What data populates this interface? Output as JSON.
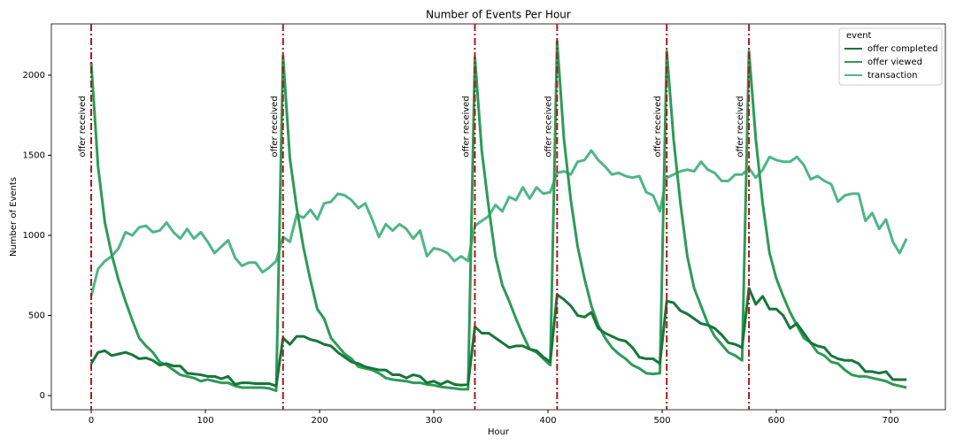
{
  "chart_data": {
    "type": "line",
    "title": "Number of Events Per Hour",
    "x_label": "Hour",
    "y_label": "Number of Events",
    "x": [
      0,
      6,
      12,
      18,
      24,
      30,
      36,
      42,
      48,
      54,
      60,
      66,
      72,
      78,
      84,
      90,
      96,
      102,
      108,
      114,
      120,
      126,
      132,
      138,
      144,
      150,
      156,
      162,
      168,
      174,
      180,
      186,
      192,
      198,
      204,
      210,
      216,
      222,
      228,
      234,
      240,
      246,
      252,
      258,
      264,
      270,
      276,
      282,
      288,
      294,
      300,
      306,
      312,
      318,
      324,
      330,
      336,
      342,
      348,
      354,
      360,
      366,
      372,
      378,
      384,
      390,
      396,
      402,
      408,
      414,
      420,
      426,
      432,
      438,
      444,
      450,
      456,
      462,
      468,
      474,
      480,
      486,
      492,
      498,
      504,
      510,
      516,
      522,
      528,
      534,
      540,
      546,
      552,
      558,
      564,
      570,
      576,
      582,
      588,
      594,
      600,
      606,
      612,
      618,
      624,
      630,
      636,
      642,
      648,
      654,
      660,
      666,
      672,
      678,
      684,
      690,
      696,
      702,
      708,
      714
    ],
    "series": [
      {
        "name": "offer completed",
        "color": "#17763a",
        "values": [
          200,
          270,
          280,
          250,
          260,
          270,
          255,
          230,
          235,
          220,
          190,
          200,
          185,
          185,
          140,
          135,
          130,
          120,
          120,
          105,
          120,
          70,
          80,
          80,
          75,
          75,
          75,
          60,
          360,
          320,
          370,
          370,
          350,
          340,
          320,
          310,
          270,
          240,
          210,
          200,
          180,
          170,
          160,
          160,
          130,
          130,
          110,
          130,
          120,
          80,
          90,
          70,
          90,
          70,
          65,
          70,
          430,
          390,
          390,
          360,
          330,
          300,
          310,
          310,
          290,
          280,
          240,
          210,
          630,
          600,
          560,
          500,
          490,
          520,
          420,
          390,
          370,
          350,
          340,
          300,
          240,
          230,
          230,
          200,
          590,
          580,
          530,
          510,
          480,
          450,
          440,
          420,
          380,
          330,
          320,
          300,
          670,
          570,
          620,
          540,
          540,
          500,
          420,
          450,
          390,
          330,
          310,
          300,
          250,
          230,
          220,
          220,
          200,
          150,
          150,
          140,
          150,
          100,
          100,
          100
        ]
      },
      {
        "name": "offer viewed",
        "color": "#2e9a57",
        "values": [
          2080,
          1430,
          1080,
          880,
          720,
          590,
          470,
          360,
          310,
          270,
          210,
          190,
          160,
          130,
          120,
          110,
          90,
          100,
          90,
          80,
          80,
          60,
          50,
          50,
          50,
          50,
          45,
          30,
          2120,
          1480,
          1170,
          920,
          720,
          540,
          480,
          360,
          310,
          260,
          230,
          180,
          170,
          160,
          140,
          110,
          100,
          95,
          90,
          80,
          80,
          70,
          65,
          55,
          50,
          45,
          40,
          40,
          2110,
          1530,
          1180,
          870,
          690,
          590,
          480,
          380,
          290,
          270,
          230,
          190,
          2210,
          1600,
          1220,
          930,
          730,
          560,
          440,
          360,
          300,
          260,
          230,
          190,
          170,
          140,
          135,
          140,
          2150,
          1600,
          1200,
          870,
          670,
          560,
          450,
          370,
          320,
          270,
          250,
          220,
          2150,
          1600,
          1200,
          890,
          730,
          620,
          520,
          440,
          360,
          330,
          270,
          250,
          210,
          200,
          160,
          130,
          120,
          120,
          110,
          100,
          90,
          70,
          60,
          50
        ]
      },
      {
        "name": "transaction",
        "color": "#4fb687",
        "values": [
          620,
          790,
          840,
          870,
          920,
          1020,
          1000,
          1050,
          1060,
          1020,
          1030,
          1080,
          1020,
          980,
          1040,
          980,
          1020,
          960,
          890,
          930,
          970,
          860,
          810,
          830,
          830,
          770,
          800,
          840,
          990,
          960,
          1130,
          1110,
          1160,
          1100,
          1200,
          1210,
          1260,
          1250,
          1220,
          1170,
          1200,
          1100,
          990,
          1070,
          1030,
          1070,
          1040,
          980,
          1030,
          870,
          920,
          910,
          890,
          840,
          870,
          840,
          1060,
          1090,
          1120,
          1190,
          1150,
          1240,
          1220,
          1300,
          1230,
          1300,
          1260,
          1270,
          1390,
          1400,
          1380,
          1460,
          1470,
          1530,
          1470,
          1430,
          1380,
          1390,
          1370,
          1360,
          1370,
          1270,
          1250,
          1150,
          1360,
          1380,
          1400,
          1410,
          1400,
          1460,
          1410,
          1390,
          1340,
          1340,
          1380,
          1380,
          1420,
          1360,
          1410,
          1490,
          1470,
          1460,
          1460,
          1490,
          1440,
          1350,
          1370,
          1340,
          1320,
          1210,
          1250,
          1260,
          1260,
          1090,
          1140,
          1040,
          1100,
          960,
          890,
          980
        ]
      }
    ],
    "legend_title": "event",
    "legend_position": "upper right",
    "vlines": [
      {
        "x": 0,
        "label": "offer received"
      },
      {
        "x": 168,
        "label": "offer received"
      },
      {
        "x": 336,
        "label": "offer received"
      },
      {
        "x": 408,
        "label": "offer received"
      },
      {
        "x": 504,
        "label": "offer received"
      },
      {
        "x": 576,
        "label": "offer received"
      }
    ],
    "vline_color": "#a11d1d",
    "xlim": [
      -34.9,
      748
    ],
    "ylim": [
      -88,
      2320
    ],
    "xticks": [
      0,
      100,
      200,
      300,
      400,
      500,
      600,
      700
    ],
    "yticks": [
      0,
      500,
      1000,
      1500,
      2000
    ]
  }
}
